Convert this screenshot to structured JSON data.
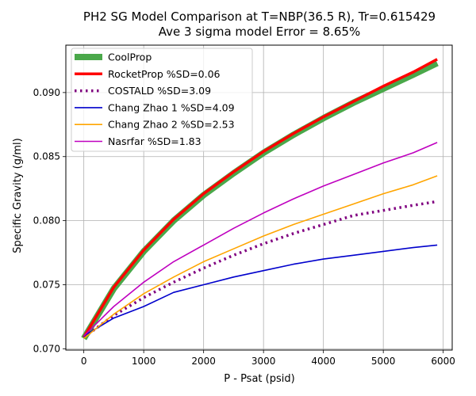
{
  "chart_data": {
    "type": "line",
    "title": "PH2 SG Model Comparison at T=NBP(36.5 R), Tr=0.615429",
    "subtitle": "Ave 3 sigma model Error = 8.65%",
    "xlabel": "P - Psat (psid)",
    "ylabel": "Specific Gravity (g/ml)",
    "xlim": [
      -300,
      6150
    ],
    "ylim": [
      0.0699,
      0.0937
    ],
    "xticks": [
      0,
      1000,
      2000,
      3000,
      4000,
      5000,
      6000
    ],
    "yticks": [
      0.07,
      0.075,
      0.08,
      0.085,
      0.09
    ],
    "ytick_labels": [
      "0.070",
      "0.075",
      "0.080",
      "0.085",
      "0.090"
    ],
    "grid": true,
    "legend_position": "top-left",
    "x": [
      0,
      500,
      1000,
      1500,
      2000,
      2500,
      3000,
      3500,
      4000,
      4500,
      5000,
      5500,
      5900
    ],
    "series": [
      {
        "name": "CoolProp",
        "color": "#4aa84a",
        "style": "solid",
        "weight": "thick",
        "values": [
          0.0708,
          0.0747,
          0.0776,
          0.08,
          0.082,
          0.0837,
          0.0853,
          0.0867,
          0.088,
          0.0892,
          0.0903,
          0.0914,
          0.0923
        ]
      },
      {
        "name": "RocketProp %SD=0.06",
        "color": "#ff0000",
        "style": "solid",
        "weight": "medium",
        "values": [
          0.0709,
          0.0748,
          0.0777,
          0.0801,
          0.0821,
          0.0838,
          0.0854,
          0.0868,
          0.0881,
          0.0893,
          0.0905,
          0.0916,
          0.0926
        ]
      },
      {
        "name": "COSTALD %SD=3.09",
        "color": "#800080",
        "style": "dotted",
        "weight": "medium",
        "values": [
          0.0709,
          0.0726,
          0.074,
          0.0752,
          0.0763,
          0.0773,
          0.0782,
          0.079,
          0.0797,
          0.0804,
          0.0808,
          0.0812,
          0.0815
        ]
      },
      {
        "name": "Chang Zhao 1 %SD=4.09",
        "color": "#0000cc",
        "style": "solid",
        "weight": "thin",
        "values": [
          0.071,
          0.0724,
          0.0733,
          0.0744,
          0.075,
          0.0756,
          0.0761,
          0.0766,
          0.077,
          0.0773,
          0.0776,
          0.0779,
          0.0781
        ]
      },
      {
        "name": "Chang Zhao 2 %SD=2.53",
        "color": "#ffa500",
        "style": "solid",
        "weight": "thin",
        "values": [
          0.0708,
          0.0727,
          0.0743,
          0.0756,
          0.0768,
          0.0778,
          0.0788,
          0.0797,
          0.0805,
          0.0813,
          0.0821,
          0.0828,
          0.0835
        ]
      },
      {
        "name": "Nasrfar %SD=1.83",
        "color": "#bf00bf",
        "style": "solid",
        "weight": "thin",
        "values": [
          0.071,
          0.0733,
          0.0752,
          0.0768,
          0.0781,
          0.0794,
          0.0806,
          0.0817,
          0.0827,
          0.0836,
          0.0845,
          0.0853,
          0.0861
        ]
      }
    ]
  }
}
